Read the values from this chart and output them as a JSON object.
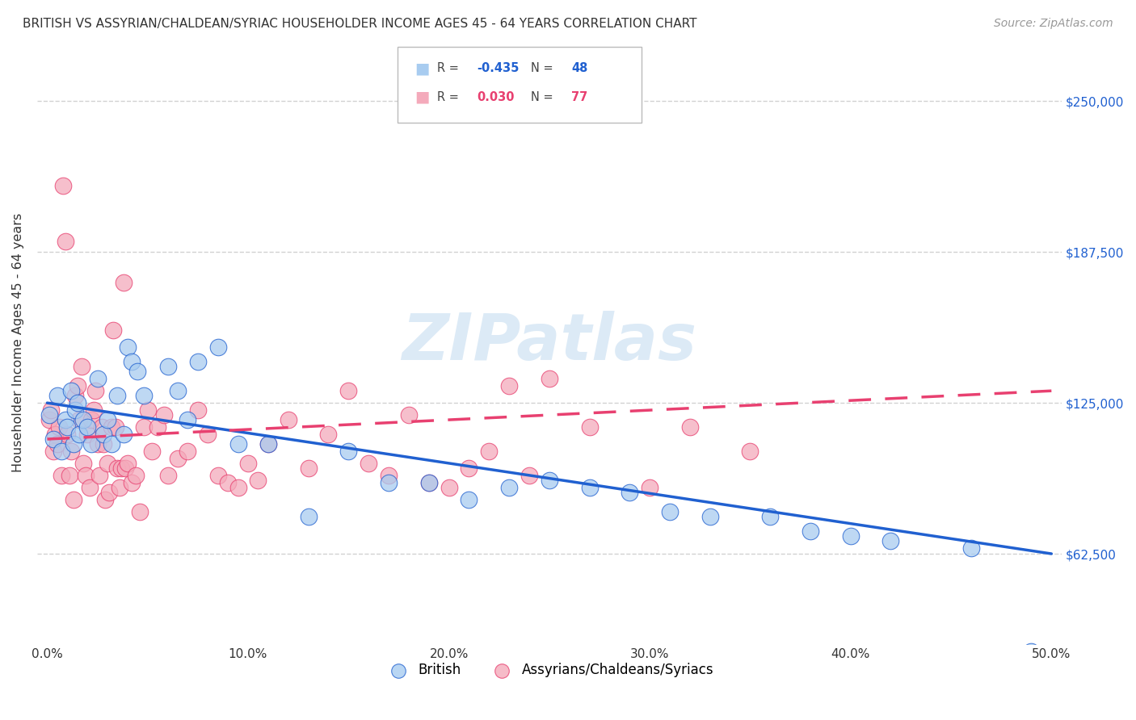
{
  "title": "BRITISH VS ASSYRIAN/CHALDEAN/SYRIAC HOUSEHOLDER INCOME AGES 45 - 64 YEARS CORRELATION CHART",
  "source": "Source: ZipAtlas.com",
  "ylabel": "Householder Income Ages 45 - 64 years",
  "xlim": [
    -0.005,
    0.505
  ],
  "ylim": [
    25000,
    275000
  ],
  "xtick_labels": [
    "0.0%",
    "10.0%",
    "20.0%",
    "30.0%",
    "40.0%",
    "50.0%"
  ],
  "xtick_vals": [
    0.0,
    0.1,
    0.2,
    0.3,
    0.4,
    0.5
  ],
  "ytick_vals": [
    62500,
    125000,
    187500,
    250000
  ],
  "ytick_labels": [
    "$62,500",
    "$125,000",
    "$187,500",
    "$250,000"
  ],
  "british_R": -0.435,
  "british_N": 48,
  "assyrian_R": 0.03,
  "assyrian_N": 77,
  "british_color": "#A8CCF0",
  "assyrian_color": "#F4AABB",
  "british_line_color": "#2060D0",
  "assyrian_line_color": "#E84070",
  "watermark": "ZIPatlas",
  "background_color": "#FFFFFF",
  "grid_color": "#CCCCCC",
  "british_x": [
    0.001,
    0.003,
    0.005,
    0.007,
    0.009,
    0.01,
    0.012,
    0.013,
    0.014,
    0.015,
    0.016,
    0.018,
    0.02,
    0.022,
    0.025,
    0.028,
    0.03,
    0.032,
    0.035,
    0.038,
    0.04,
    0.042,
    0.045,
    0.048,
    0.06,
    0.065,
    0.07,
    0.075,
    0.085,
    0.095,
    0.11,
    0.13,
    0.15,
    0.17,
    0.19,
    0.21,
    0.23,
    0.25,
    0.27,
    0.29,
    0.31,
    0.33,
    0.36,
    0.38,
    0.4,
    0.42,
    0.46,
    0.49
  ],
  "british_y": [
    120000,
    110000,
    128000,
    105000,
    118000,
    115000,
    130000,
    108000,
    122000,
    125000,
    112000,
    118000,
    115000,
    108000,
    135000,
    112000,
    118000,
    108000,
    128000,
    112000,
    148000,
    142000,
    138000,
    128000,
    140000,
    130000,
    118000,
    142000,
    148000,
    108000,
    108000,
    78000,
    105000,
    92000,
    92000,
    85000,
    90000,
    93000,
    90000,
    88000,
    80000,
    78000,
    78000,
    72000,
    70000,
    68000,
    65000,
    22000
  ],
  "assyrian_x": [
    0.001,
    0.002,
    0.003,
    0.004,
    0.005,
    0.006,
    0.007,
    0.008,
    0.009,
    0.01,
    0.011,
    0.012,
    0.013,
    0.014,
    0.015,
    0.016,
    0.017,
    0.018,
    0.019,
    0.02,
    0.021,
    0.022,
    0.023,
    0.024,
    0.025,
    0.026,
    0.027,
    0.028,
    0.029,
    0.03,
    0.031,
    0.032,
    0.033,
    0.034,
    0.035,
    0.036,
    0.037,
    0.038,
    0.039,
    0.04,
    0.042,
    0.044,
    0.046,
    0.048,
    0.05,
    0.052,
    0.055,
    0.058,
    0.06,
    0.065,
    0.07,
    0.075,
    0.08,
    0.085,
    0.09,
    0.095,
    0.1,
    0.105,
    0.11,
    0.12,
    0.13,
    0.14,
    0.15,
    0.16,
    0.17,
    0.18,
    0.19,
    0.2,
    0.21,
    0.22,
    0.23,
    0.24,
    0.25,
    0.27,
    0.3,
    0.32,
    0.35
  ],
  "assyrian_y": [
    118000,
    122000,
    105000,
    112000,
    108000,
    115000,
    95000,
    215000,
    192000,
    112000,
    95000,
    105000,
    85000,
    128000,
    132000,
    118000,
    140000,
    100000,
    95000,
    112000,
    90000,
    118000,
    122000,
    130000,
    108000,
    95000,
    115000,
    108000,
    85000,
    100000,
    88000,
    115000,
    155000,
    115000,
    98000,
    90000,
    98000,
    175000,
    98000,
    100000,
    92000,
    95000,
    80000,
    115000,
    122000,
    105000,
    115000,
    120000,
    95000,
    102000,
    105000,
    122000,
    112000,
    95000,
    92000,
    90000,
    100000,
    93000,
    108000,
    118000,
    98000,
    112000,
    130000,
    100000,
    95000,
    120000,
    92000,
    90000,
    98000,
    105000,
    132000,
    95000,
    135000,
    115000,
    90000,
    115000,
    105000
  ]
}
